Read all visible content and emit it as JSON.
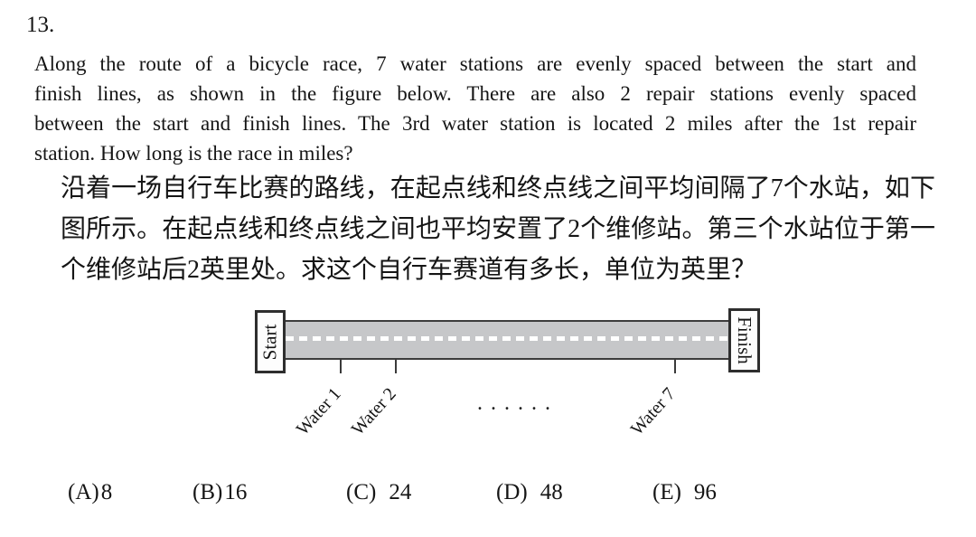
{
  "problem": {
    "number": "13.",
    "english_lines": [
      "Along the route of a bicycle race, 7 water stations are evenly spaced between the start and",
      "finish lines, as shown in the figure below.  There are also 2 repair stations evenly spaced",
      "between the start and finish lines. The 3rd water station is located 2 miles after the 1st repair",
      "station. How long is the race in miles?"
    ],
    "chinese_lines": [
      "沿着一场自行车比赛的路线，在起点线和终点线之间平均间隔了7个水站，如下",
      "图所示。在起点线和终点线之间也平均安置了2个维修站。第三个水站位于第一",
      "个维修站后2英里处。求这个自行车赛道有多长，单位为英里？"
    ]
  },
  "figure": {
    "start_label": "Start",
    "finish_label": "Finish",
    "water_labels": [
      "Water 1",
      "Water 2",
      "Water 7"
    ],
    "ellipsis": "......",
    "road_color": "#c6c7c9"
  },
  "choices": [
    {
      "letter": "(A)",
      "value": "8"
    },
    {
      "letter": "(B)",
      "value": "16"
    },
    {
      "letter": "(C)",
      "value": "24"
    },
    {
      "letter": "(D)",
      "value": "48"
    },
    {
      "letter": "(E)",
      "value": "96"
    }
  ]
}
